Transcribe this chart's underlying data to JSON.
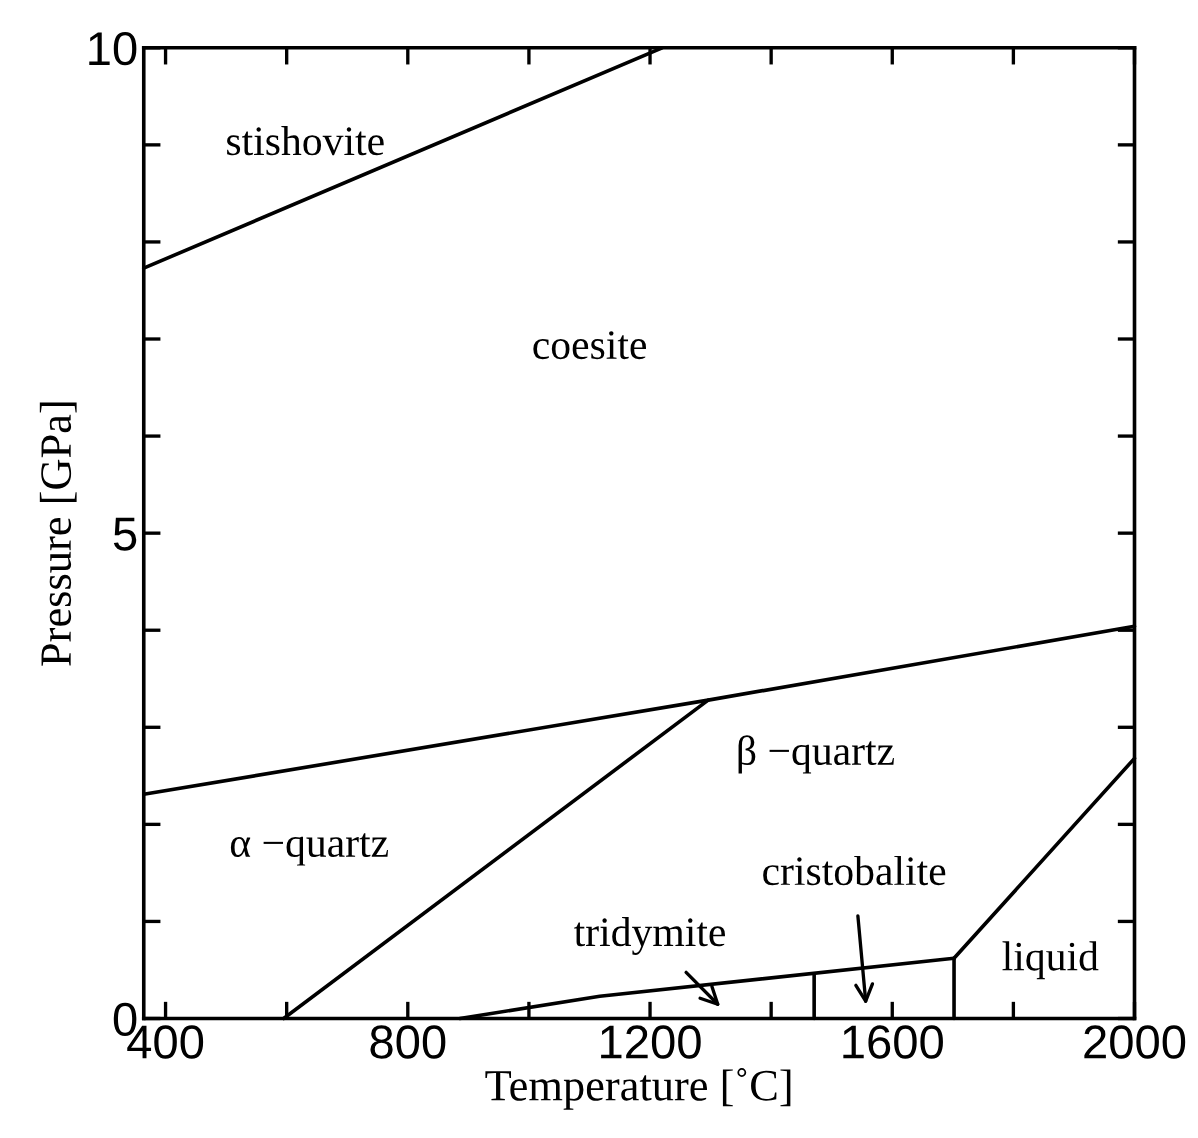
{
  "chart_data": {
    "type": "line",
    "xlabel": "Temperature [˚C]",
    "ylabel": "Pressure [GPa]",
    "xlim": [
      364,
      2000
    ],
    "ylim": [
      0,
      10
    ],
    "xticks": [
      400,
      {
        "value": 600,
        "label": null
      },
      800,
      {
        "value": 1000,
        "label": null
      },
      1200,
      {
        "value": 1400,
        "label": null
      },
      1600,
      {
        "value": 1800,
        "label": null
      },
      2000
    ],
    "yticks": [
      0,
      {
        "value": 1,
        "label": null
      },
      {
        "value": 2,
        "label": null
      },
      {
        "value": 3,
        "label": null
      },
      {
        "value": 4,
        "label": null
      },
      5,
      {
        "value": 6,
        "label": null
      },
      {
        "value": 7,
        "label": null
      },
      {
        "value": 8,
        "label": null
      },
      {
        "value": 9,
        "label": null
      },
      10
    ],
    "grid": false,
    "legend": false,
    "marker": "none",
    "line_style": "solid",
    "series": [
      {
        "color": "#000000",
        "x": [
          364,
          1220
        ],
        "values": [
          7.73,
          10
        ]
      },
      {
        "color": "#000000",
        "x": [
          364,
          1296,
          2000
        ],
        "values": [
          2.31,
          3.28,
          4.04
        ]
      },
      {
        "color": "#000000",
        "x": [
          595,
          1296
        ],
        "values": [
          0,
          3.28
        ]
      },
      {
        "color": "#000000",
        "x": [
          886,
          1117,
          1702
        ],
        "values": [
          0,
          0.23,
          0.62
        ]
      },
      {
        "color": "#000000",
        "x": [
          1471,
          1471
        ],
        "values": [
          0,
          0.45
        ]
      },
      {
        "color": "#000000",
        "x": [
          1702,
          1702
        ],
        "values": [
          0,
          0.62
        ]
      },
      {
        "color": "#000000",
        "x": [
          1702,
          2000
        ],
        "values": [
          0.62,
          2.68
        ]
      }
    ],
    "annotations": [
      "stishovite",
      "coesite",
      "α −quartz",
      "β −quartz",
      "liquid",
      "tridymite",
      "cristobalite"
    ]
  }
}
